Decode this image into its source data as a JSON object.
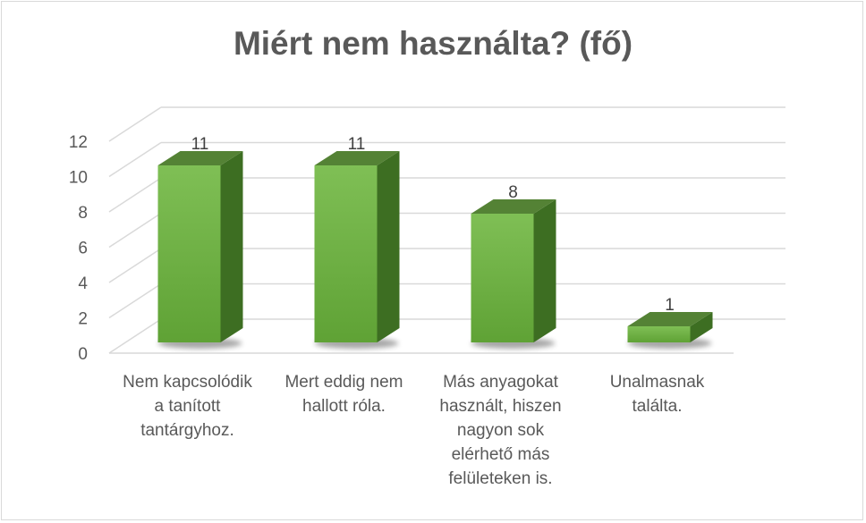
{
  "chart_data": {
    "type": "bar",
    "title": "Miért nem használta? (fő)",
    "categories": [
      "Nem kapcsolódik\na tanított\ntantárgyhoz.",
      "Mert eddig nem\nhallott róla.",
      "Más anyagokat\nhasznált, hiszen\nnagyon sok\nelérhető más\nfelületeken is.",
      "Unalmasnak\ntalálta."
    ],
    "values": [
      11,
      11,
      8,
      1
    ],
    "data_labels": [
      "11",
      "11",
      "8",
      "1"
    ],
    "ylim": [
      0,
      12
    ],
    "yticks": [
      "0",
      "2",
      "4",
      "6",
      "8",
      "10",
      "12"
    ],
    "grid": true,
    "style": "3d-column",
    "colors": {
      "bar_front": "#70ad47",
      "bar_side": "#3d6e22",
      "bar_top": "#548235",
      "gridline": "#d9d9d9",
      "text": "#595959"
    }
  }
}
